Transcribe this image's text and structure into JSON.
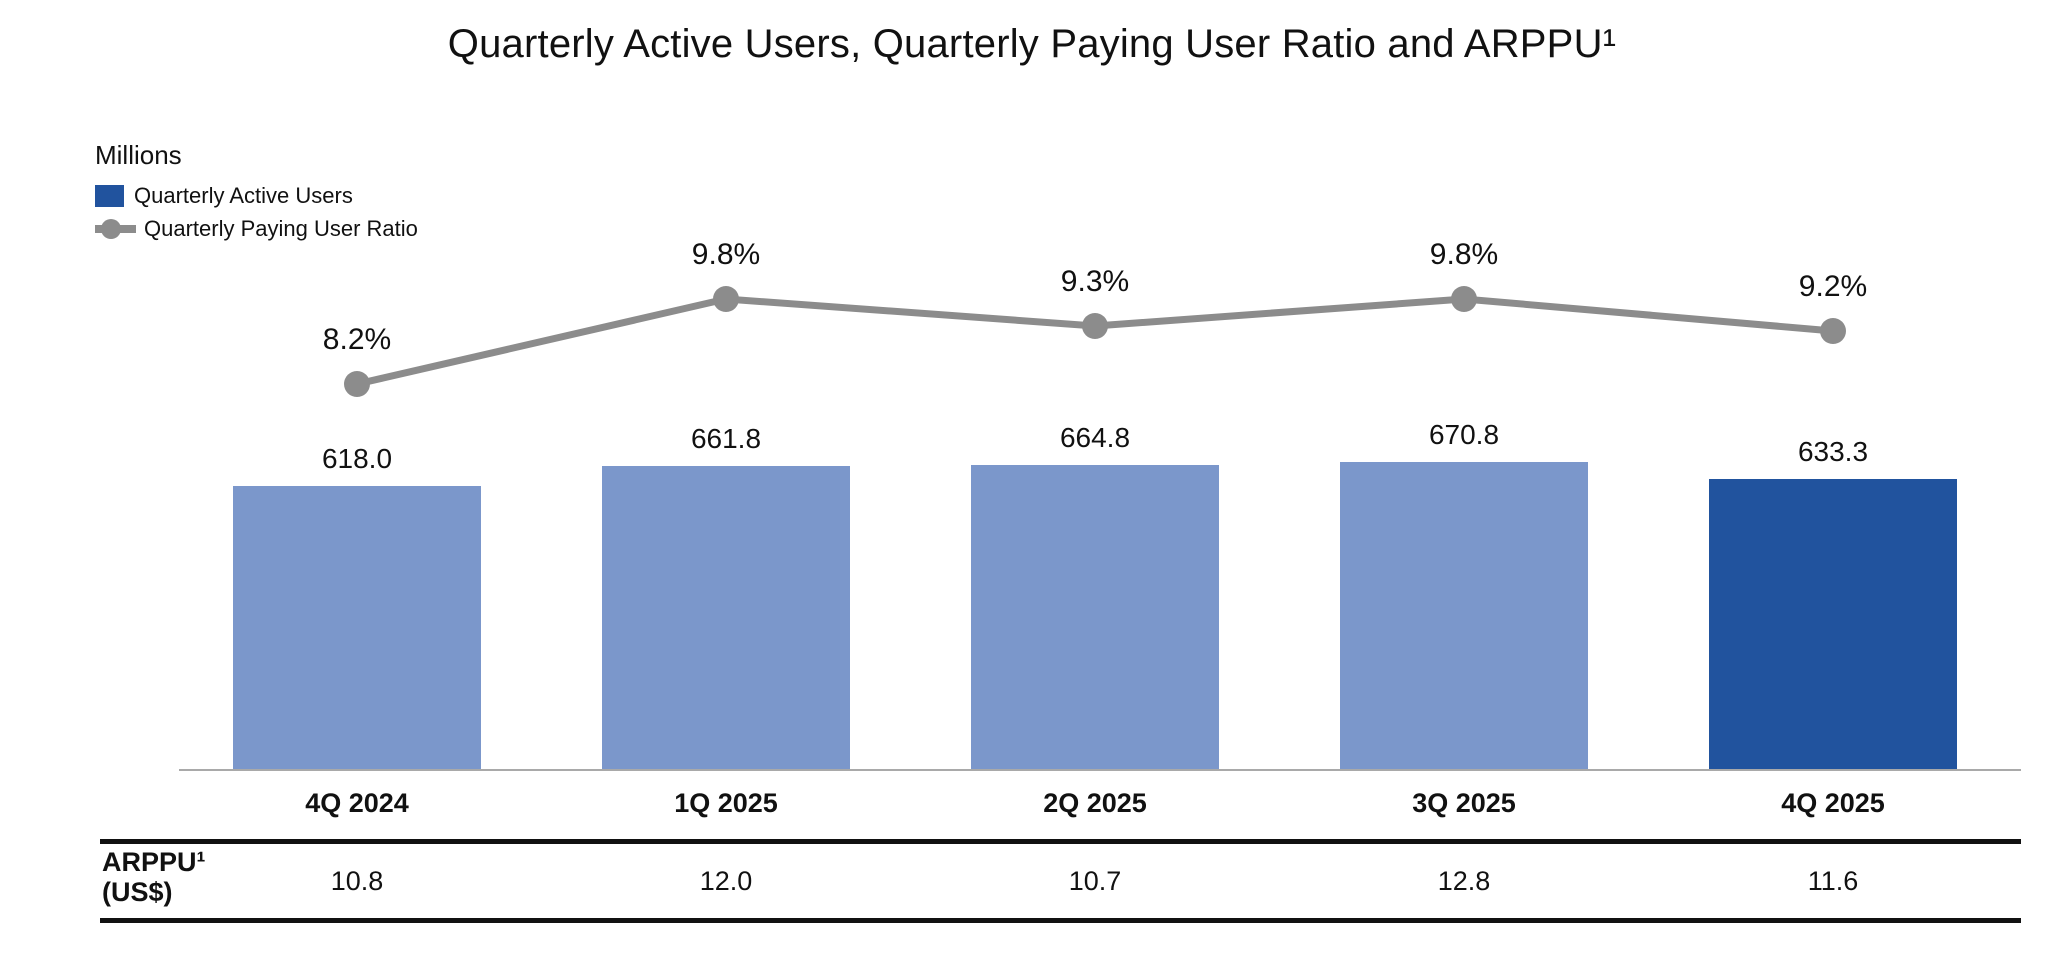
{
  "title": "Quarterly Active Users, Quarterly Paying User Ratio and ARPPU¹",
  "unit_label": "Millions",
  "legend": [
    {
      "label": "Quarterly Active Users",
      "swatch": "blue-square"
    },
    {
      "label": "Quarterly Paying User Ratio",
      "swatch": "gray-line-dot"
    }
  ],
  "colors": {
    "bar_light": "#7B97CB",
    "bar_dark": "#21539E",
    "line_gray": "#8C8C8C",
    "axis_gray": "#A9A9A9",
    "text": "#111111"
  },
  "chart_data": {
    "type": "combo-bar-line",
    "gridlines": false,
    "legend_position": "top-left",
    "categories": [
      "4Q 2024",
      "1Q 2025",
      "2Q 2025",
      "3Q 2025",
      "4Q 2025"
    ],
    "series": [
      {
        "name": "Quarterly Active Users",
        "type": "bar",
        "unit": "millions",
        "values": [
          618.0,
          661.8,
          664.8,
          670.8,
          633.3
        ],
        "labels": [
          "618.0",
          "661.8",
          "664.8",
          "670.8",
          "633.3"
        ],
        "highlight_index": 4
      },
      {
        "name": "Quarterly Paying User Ratio",
        "type": "line",
        "unit": "percent",
        "values": [
          8.2,
          9.8,
          9.3,
          9.8,
          9.2
        ],
        "labels": [
          "8.2%",
          "9.8%",
          "9.3%",
          "9.8%",
          "9.2%"
        ]
      }
    ],
    "footnote_table": {
      "header_line1": "ARPPU¹",
      "header_line2": "(US$)",
      "values": [
        "10.8",
        "12.0",
        "10.7",
        "12.8",
        "11.6"
      ]
    }
  }
}
